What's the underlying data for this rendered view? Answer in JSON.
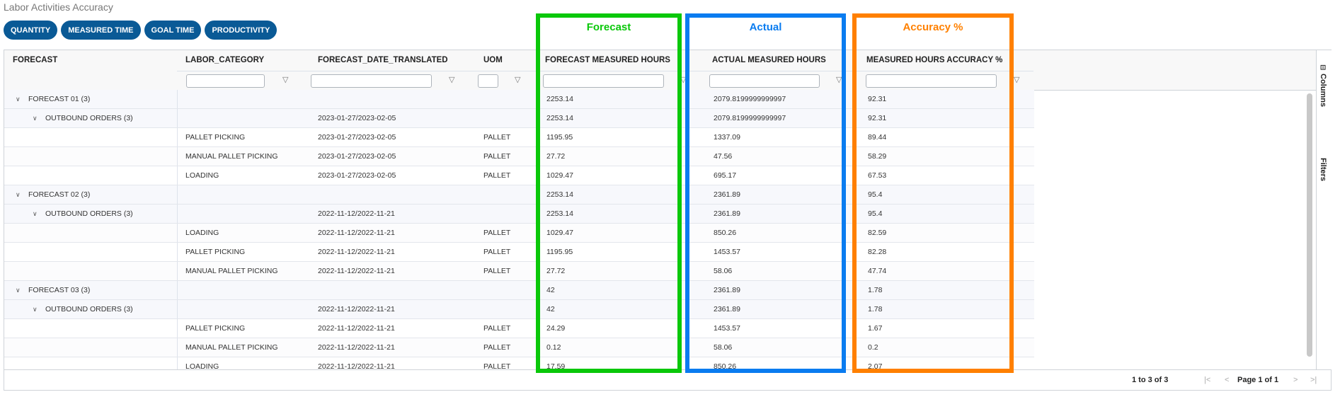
{
  "page_title": "Labor Activities Accuracy",
  "buttons": [
    "QUANTITY",
    "MEASURED TIME",
    "GOAL TIME",
    "PRODUCTIVITY"
  ],
  "columns": [
    "FORECAST",
    "LABOR_CATEGORY",
    "FORECAST_DATE_TRANSLATED",
    "UOM",
    "FORECAST MEASURED HOURS",
    "ACTUAL MEASURED HOURS",
    "MEASURED HOURS ACCURACY %"
  ],
  "filter_icon": "funnel-icon",
  "rows": [
    {
      "type": "g1",
      "forecast": "FORECAST 01 (3)",
      "labor_category": "",
      "date": "",
      "uom": "",
      "forecast_hours": "2253.14",
      "actual_hours": "2079.8199999999997",
      "accuracy": "92.31"
    },
    {
      "type": "g2",
      "forecast": "OUTBOUND ORDERS (3)",
      "labor_category": "",
      "date": "2023-01-27/2023-02-05",
      "uom": "",
      "forecast_hours": "2253.14",
      "actual_hours": "2079.8199999999997",
      "accuracy": "92.31"
    },
    {
      "type": "leaf",
      "forecast": "",
      "labor_category": "PALLET PICKING",
      "date": "2023-01-27/2023-02-05",
      "uom": "PALLET",
      "forecast_hours": "1195.95",
      "actual_hours": "1337.09",
      "accuracy": "89.44"
    },
    {
      "type": "leaf",
      "forecast": "",
      "labor_category": "MANUAL PALLET PICKING",
      "date": "2023-01-27/2023-02-05",
      "uom": "PALLET",
      "forecast_hours": "27.72",
      "actual_hours": "47.56",
      "accuracy": "58.29"
    },
    {
      "type": "leaf",
      "forecast": "",
      "labor_category": "LOADING",
      "date": "2023-01-27/2023-02-05",
      "uom": "PALLET",
      "forecast_hours": "1029.47",
      "actual_hours": "695.17",
      "accuracy": "67.53"
    },
    {
      "type": "g1",
      "forecast": "FORECAST 02 (3)",
      "labor_category": "",
      "date": "",
      "uom": "",
      "forecast_hours": "2253.14",
      "actual_hours": "2361.89",
      "accuracy": "95.4"
    },
    {
      "type": "g2",
      "forecast": "OUTBOUND ORDERS (3)",
      "labor_category": "",
      "date": "2022-11-12/2022-11-21",
      "uom": "",
      "forecast_hours": "2253.14",
      "actual_hours": "2361.89",
      "accuracy": "95.4"
    },
    {
      "type": "leaf",
      "forecast": "",
      "labor_category": "LOADING",
      "date": "2022-11-12/2022-11-21",
      "uom": "PALLET",
      "forecast_hours": "1029.47",
      "actual_hours": "850.26",
      "accuracy": "82.59"
    },
    {
      "type": "leaf",
      "forecast": "",
      "labor_category": "PALLET PICKING",
      "date": "2022-11-12/2022-11-21",
      "uom": "PALLET",
      "forecast_hours": "1195.95",
      "actual_hours": "1453.57",
      "accuracy": "82.28"
    },
    {
      "type": "leaf",
      "forecast": "",
      "labor_category": "MANUAL PALLET PICKING",
      "date": "2022-11-12/2022-11-21",
      "uom": "PALLET",
      "forecast_hours": "27.72",
      "actual_hours": "58.06",
      "accuracy": "47.74"
    },
    {
      "type": "g1",
      "forecast": "FORECAST 03 (3)",
      "labor_category": "",
      "date": "",
      "uom": "",
      "forecast_hours": "42",
      "actual_hours": "2361.89",
      "accuracy": "1.78"
    },
    {
      "type": "g2",
      "forecast": "OUTBOUND ORDERS (3)",
      "labor_category": "",
      "date": "2022-11-12/2022-11-21",
      "uom": "",
      "forecast_hours": "42",
      "actual_hours": "2361.89",
      "accuracy": "1.78"
    },
    {
      "type": "leaf",
      "forecast": "",
      "labor_category": "PALLET PICKING",
      "date": "2022-11-12/2022-11-21",
      "uom": "PALLET",
      "forecast_hours": "24.29",
      "actual_hours": "1453.57",
      "accuracy": "1.67"
    },
    {
      "type": "leaf",
      "forecast": "",
      "labor_category": "MANUAL PALLET PICKING",
      "date": "2022-11-12/2022-11-21",
      "uom": "PALLET",
      "forecast_hours": "0.12",
      "actual_hours": "58.06",
      "accuracy": "0.2"
    },
    {
      "type": "leaf",
      "forecast": "",
      "labor_category": "LOADING",
      "date": "2022-11-12/2022-11-21",
      "uom": "PALLET",
      "forecast_hours": "17.59",
      "actual_hours": "850.26",
      "accuracy": "2.07"
    }
  ],
  "side_panel": {
    "columns": "Columns",
    "filters": "Filters",
    "columns_icon": "columns-icon"
  },
  "footer": {
    "row_summary": "1 to 3 of 3",
    "page_label": "Page 1 of 1"
  },
  "annotations": [
    {
      "label": "Forecast",
      "color": "#0ac80a"
    },
    {
      "label": "Actual",
      "color": "#0a7cf0"
    },
    {
      "label": "Accuracy %",
      "color": "#ff8000"
    }
  ]
}
